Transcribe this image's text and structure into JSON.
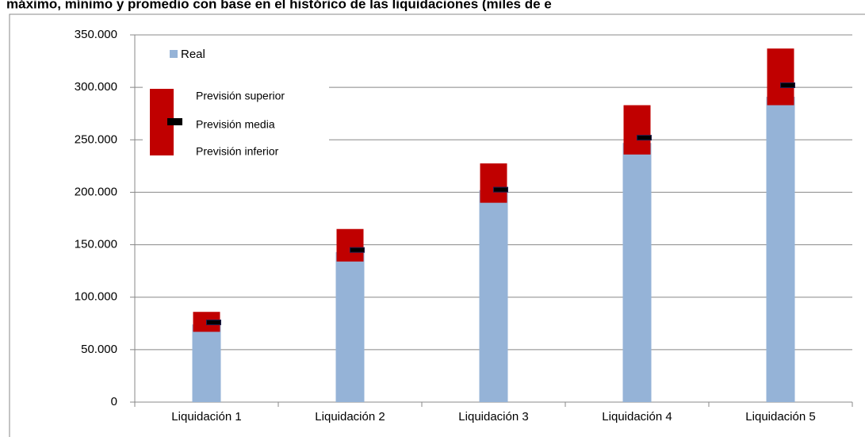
{
  "chart_data": {
    "type": "range-bar",
    "title": "máximo, mínimo y promedio con base en el histórico de las liquidaciones (miles de e",
    "categories": [
      "Liquidación 1",
      "Liquidación 2",
      "Liquidación 3",
      "Liquidación 4",
      "Liquidación 5"
    ],
    "series": [
      {
        "name": "Real",
        "color": "#95b3d7",
        "values": [
          74000,
          143000,
          202000,
          247000,
          291000
        ]
      },
      {
        "name": "Previsión superior",
        "color": "#c00000",
        "values": [
          86000,
          165000,
          227500,
          283000,
          337000
        ]
      },
      {
        "name": "Previsión media",
        "color": "#000000",
        "values": [
          76000,
          145000,
          202500,
          252000,
          302000
        ]
      },
      {
        "name": "Previsión inferior",
        "color": "#c00000",
        "values": [
          67000,
          134000,
          190000,
          236000,
          283000
        ]
      }
    ],
    "ylim": [
      0,
      350000
    ],
    "yticks": [
      0,
      {
        "value": 50000,
        "label": "50.000"
      },
      {
        "value": 100000,
        "label": "100.000"
      },
      {
        "value": 150000,
        "label": "150.000"
      },
      {
        "value": 200000,
        "label": "200.000"
      },
      {
        "value": 250000,
        "label": "250.000"
      },
      {
        "value": 300000,
        "label": "300.000"
      },
      {
        "value": 350000,
        "label": "350.000"
      }
    ],
    "grid": true
  }
}
